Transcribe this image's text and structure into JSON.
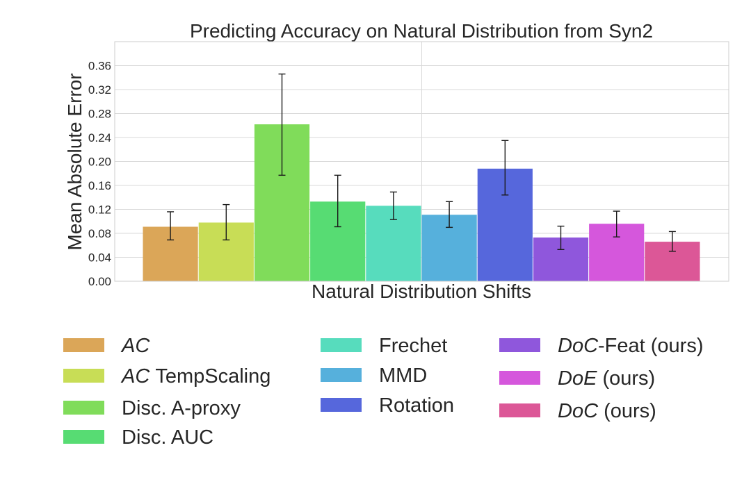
{
  "chart_data": {
    "type": "bar",
    "title": "Predicting Accuracy on Natural Distribution from Syn2",
    "xlabel": "Natural Distribution Shifts",
    "ylabel": "Mean Absolute Error",
    "ylim": [
      0,
      0.4
    ],
    "yticks": [
      "0.00",
      "0.04",
      "0.08",
      "0.12",
      "0.16",
      "0.20",
      "0.24",
      "0.28",
      "0.32",
      "0.36"
    ],
    "grid": true,
    "legend_position": "bottom",
    "series": [
      {
        "name": "AC",
        "value": 0.091,
        "err_low": 0.069,
        "err_high": 0.116,
        "color": "#dba658"
      },
      {
        "name": "AC TempScaling",
        "value": 0.098,
        "err_low": 0.069,
        "err_high": 0.128,
        "color": "#c8dd56"
      },
      {
        "name": "Disc. A-proxy",
        "value": 0.262,
        "err_low": 0.177,
        "err_high": 0.346,
        "color": "#80dc5a"
      },
      {
        "name": "Disc. AUC",
        "value": 0.133,
        "err_low": 0.091,
        "err_high": 0.177,
        "color": "#57dc73"
      },
      {
        "name": "Frechet",
        "value": 0.126,
        "err_low": 0.103,
        "err_high": 0.149,
        "color": "#57dcbd"
      },
      {
        "name": "MMD",
        "value": 0.111,
        "err_low": 0.09,
        "err_high": 0.133,
        "color": "#56b0dc"
      },
      {
        "name": "Rotation",
        "value": 0.188,
        "err_low": 0.144,
        "err_high": 0.235,
        "color": "#5667dc"
      },
      {
        "name": "DoC-Feat (ours)",
        "value": 0.073,
        "err_low": 0.053,
        "err_high": 0.092,
        "color": "#8f57dc"
      },
      {
        "name": "DoE (ours)",
        "value": 0.096,
        "err_low": 0.074,
        "err_high": 0.117,
        "color": "#d557dc"
      },
      {
        "name": "DoC (ours)",
        "value": 0.066,
        "err_low": 0.05,
        "err_high": 0.083,
        "color": "#dc5797"
      }
    ],
    "legend": [
      {
        "italic": "AC",
        "rest": ""
      },
      {
        "italic": "AC",
        "rest": " TempScaling"
      },
      {
        "italic": "",
        "rest": "Disc. A-proxy"
      },
      {
        "italic": "",
        "rest": "Disc. AUC"
      },
      {
        "italic": "",
        "rest": "Frechet"
      },
      {
        "italic": "",
        "rest": "MMD"
      },
      {
        "italic": "",
        "rest": "Rotation"
      },
      {
        "italic": "DoC",
        "rest": "-Feat (ours)"
      },
      {
        "italic": "DoE",
        "rest": " (ours)"
      },
      {
        "italic": "DoC",
        "rest": " (ours)"
      }
    ]
  }
}
